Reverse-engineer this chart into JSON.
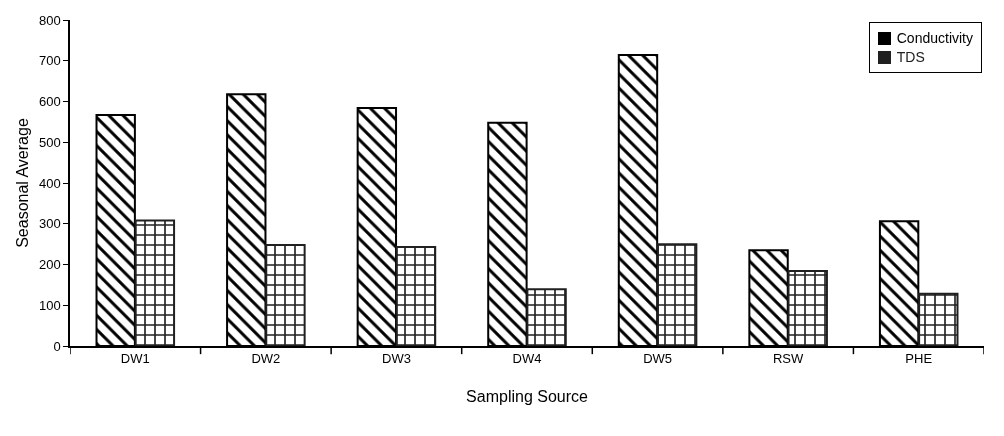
{
  "chart_data": {
    "type": "bar",
    "xlabel": "Sampling Source",
    "ylabel": "Seasonal Average",
    "categories": [
      "DW1",
      "DW2",
      "DW3",
      "DW4",
      "DW5",
      "RSW",
      "PHE"
    ],
    "series": [
      {
        "name": "Conductivity",
        "color": "#000000",
        "values": [
          567,
          618,
          584,
          548,
          714,
          235,
          306
        ]
      },
      {
        "name": "TDS",
        "color": "#202020",
        "values": [
          308,
          248,
          243,
          139,
          250,
          184,
          128
        ]
      }
    ],
    "ylim": [
      0,
      800
    ],
    "yticks": [
      0,
      100,
      200,
      300,
      400,
      500,
      600,
      700,
      800
    ],
    "grid": false,
    "legend": "top right"
  }
}
